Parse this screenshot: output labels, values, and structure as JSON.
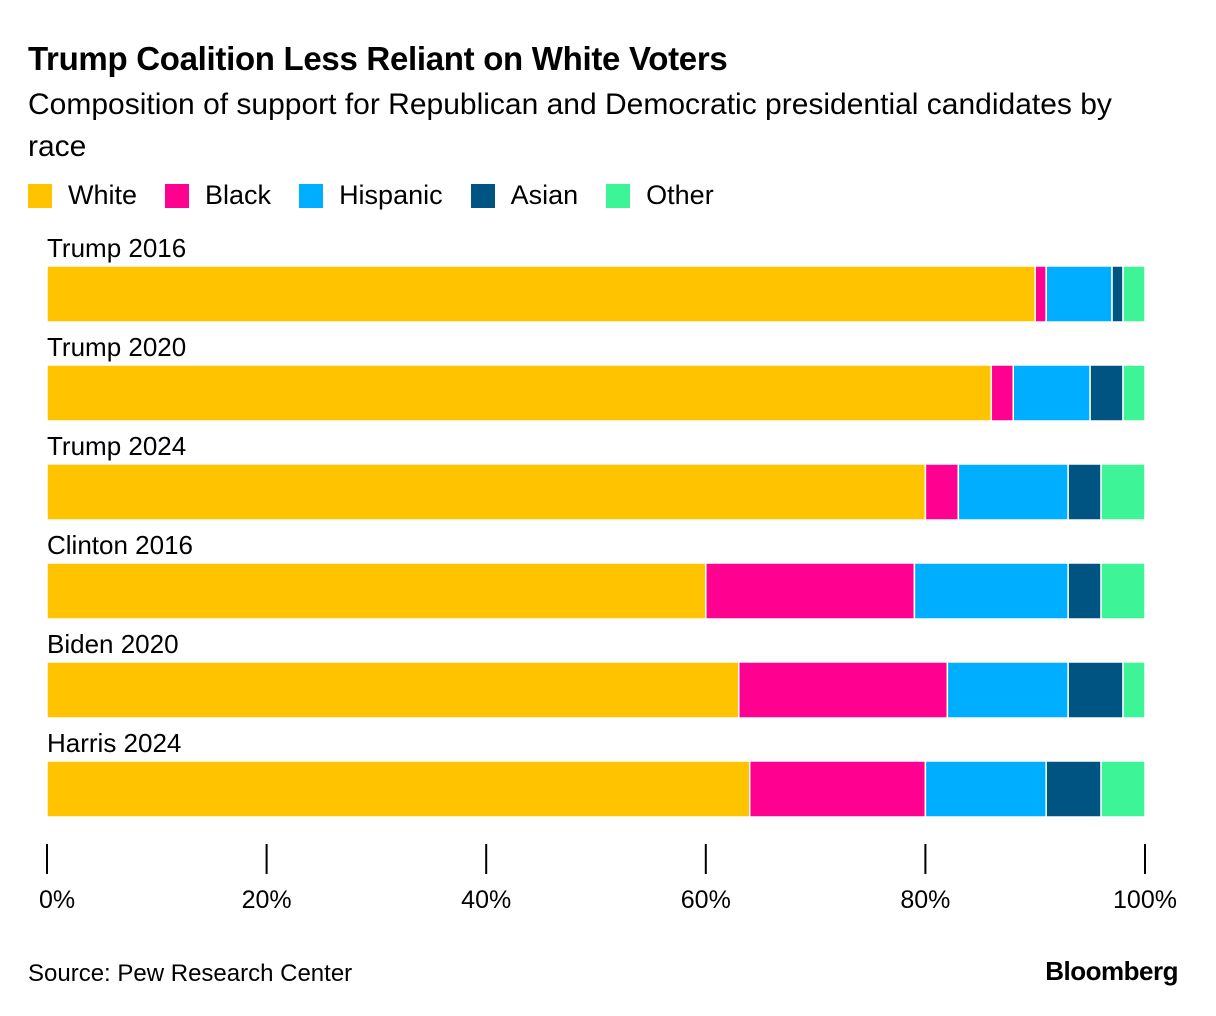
{
  "chart_data": {
    "type": "bar",
    "orientation": "horizontal",
    "stacked": true,
    "title": "Trump Coalition Less Reliant on White Voters",
    "subtitle": "Composition of support for Republican and Democratic presidential candidates by race",
    "categories": [
      "Trump 2016",
      "Trump 2020",
      "Trump 2024",
      "Clinton 2016",
      "Biden 2020",
      "Harris 2024"
    ],
    "series": [
      {
        "name": "White",
        "color": "#FFC300",
        "values": [
          90,
          86,
          80,
          60,
          63,
          64
        ]
      },
      {
        "name": "Black",
        "color": "#FF0090",
        "values": [
          1,
          2,
          3,
          19,
          19,
          16
        ]
      },
      {
        "name": "Hispanic",
        "color": "#00AEFF",
        "values": [
          6,
          7,
          10,
          14,
          11,
          11
        ]
      },
      {
        "name": "Asian",
        "color": "#005482",
        "values": [
          1,
          3,
          3,
          3,
          5,
          5
        ]
      },
      {
        "name": "Other",
        "color": "#3DF596",
        "values": [
          2,
          2,
          4,
          4,
          2,
          4
        ]
      }
    ],
    "xlim": [
      0,
      100
    ],
    "xticks": [
      "0%",
      "20%",
      "40%",
      "60%",
      "80%",
      "100%"
    ],
    "legend_position": "top"
  },
  "source": "Source: Pew Research Center",
  "brand": "Bloomberg"
}
